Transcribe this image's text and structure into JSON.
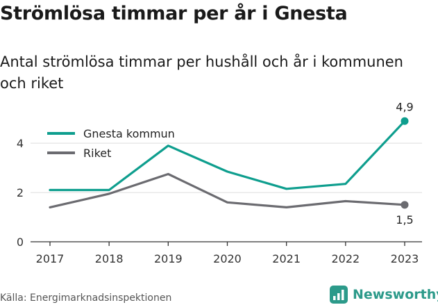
{
  "header": {
    "title": "Strömlösa timmar per år i Gnesta",
    "subtitle": "Antal strömlösa timmar per hushåll och år i kommunen och riket"
  },
  "footer": {
    "source": "Källa: Energimarknadsinspektionen",
    "brand": "Newsworthy",
    "brand_icon": "newsworthy-logo-icon"
  },
  "colors": {
    "gnesta": "#0e9e8e",
    "riket": "#6b6b70",
    "brand": "#2c9a8a",
    "grid": "#dddddd",
    "axis": "#333333"
  },
  "chart_data": {
    "type": "line",
    "x": [
      "2017",
      "2018",
      "2019",
      "2020",
      "2021",
      "2022",
      "2023"
    ],
    "y_ticks": [
      "0",
      "2",
      "4"
    ],
    "ylim": [
      0,
      5.5
    ],
    "grid": true,
    "legend_position": "top-left",
    "series": [
      {
        "name": "Gnesta kommun",
        "values": [
          2.1,
          2.1,
          3.9,
          2.85,
          2.15,
          2.35,
          4.9
        ],
        "end_label": "4,9"
      },
      {
        "name": "Riket",
        "values": [
          1.4,
          1.95,
          2.75,
          1.6,
          1.4,
          1.65,
          1.5
        ],
        "end_label": "1,5"
      }
    ]
  }
}
